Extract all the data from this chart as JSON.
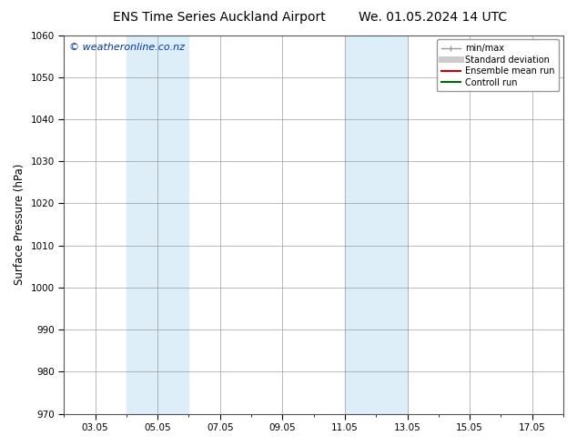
{
  "title_left": "ENS Time Series Auckland Airport",
  "title_right": "We. 01.05.2024 14 UTC",
  "ylabel": "Surface Pressure (hPa)",
  "ylim": [
    970,
    1060
  ],
  "yticks": [
    970,
    980,
    990,
    1000,
    1010,
    1020,
    1030,
    1040,
    1050,
    1060
  ],
  "xlim": [
    2.0,
    18.0
  ],
  "xtick_labels": [
    "03.05",
    "05.05",
    "07.05",
    "09.05",
    "11.05",
    "13.05",
    "15.05",
    "17.05"
  ],
  "xtick_positions": [
    3,
    5,
    7,
    9,
    11,
    13,
    15,
    17
  ],
  "shaded_regions": [
    {
      "x_start": 4.0,
      "x_end": 5.0,
      "color": "#ddeef8"
    },
    {
      "x_start": 5.0,
      "x_end": 6.0,
      "color": "#ddeef8"
    },
    {
      "x_start": 11.0,
      "x_end": 12.0,
      "color": "#ddeef8"
    },
    {
      "x_start": 12.0,
      "x_end": 13.0,
      "color": "#ddeef8"
    }
  ],
  "watermark_text": "© weatheronline.co.nz",
  "watermark_color": "#0033aa",
  "legend_entries": [
    {
      "label": "min/max",
      "color": "#999999",
      "lw": 1.0
    },
    {
      "label": "Standard deviation",
      "color": "#cccccc",
      "lw": 5
    },
    {
      "label": "Ensemble mean run",
      "color": "#cc0000",
      "lw": 1.5
    },
    {
      "label": "Controll run",
      "color": "#006600",
      "lw": 1.5
    }
  ],
  "bg_color": "#ffffff",
  "plot_bg_color": "#ffffff",
  "grid_color": "#888888",
  "title_fontsize": 10,
  "tick_fontsize": 7.5,
  "ylabel_fontsize": 8.5
}
